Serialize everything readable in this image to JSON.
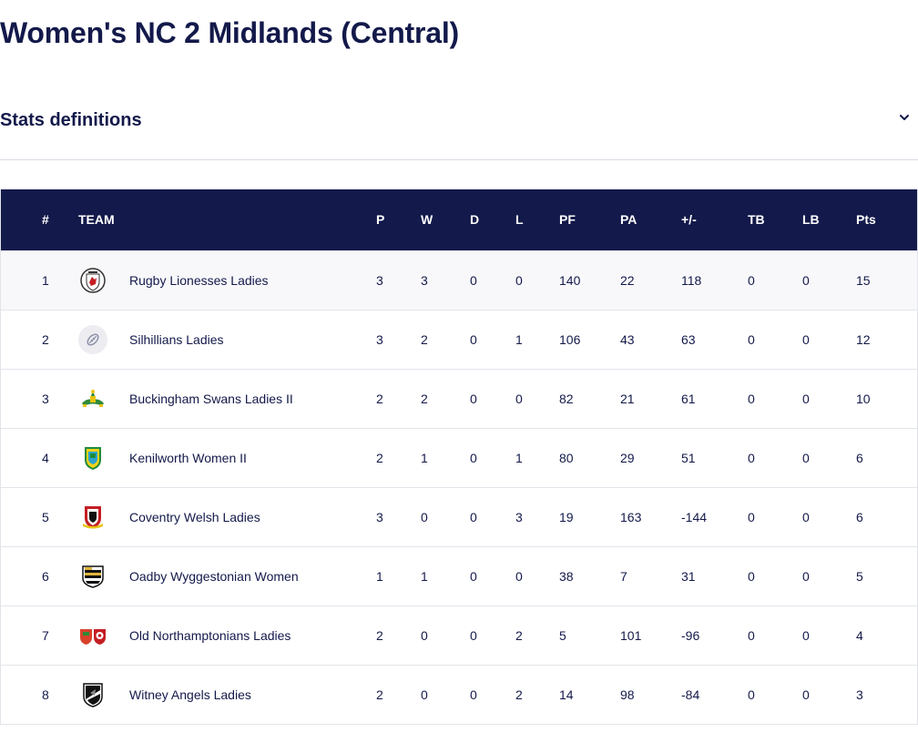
{
  "page": {
    "title": "Women's NC 2 Midlands (Central)"
  },
  "stats_definitions": {
    "label": "Stats definitions",
    "icon": "chevron-down-icon"
  },
  "colors": {
    "navy": "#13194a",
    "row_alt": "#f8f8fb",
    "border": "#e2e4ea"
  },
  "table": {
    "headers": {
      "pos": "#",
      "team": "TEAM",
      "p": "P",
      "w": "W",
      "d": "D",
      "l": "L",
      "pf": "PF",
      "pa": "PA",
      "pm": "+/-",
      "tb": "TB",
      "lb": "LB",
      "pts": "Pts"
    },
    "rows": [
      {
        "pos": "1",
        "team": "Rugby Lionesses Ladies",
        "badge": "rugby-lionesses-crest-icon",
        "p": "3",
        "w": "3",
        "d": "0",
        "l": "0",
        "pf": "140",
        "pa": "22",
        "pm": "118",
        "tb": "0",
        "lb": "0",
        "pts": "15"
      },
      {
        "pos": "2",
        "team": "Silhillians Ladies",
        "badge": "rugby-ball-placeholder-icon",
        "p": "3",
        "w": "2",
        "d": "0",
        "l": "1",
        "pf": "106",
        "pa": "43",
        "pm": "63",
        "tb": "0",
        "lb": "0",
        "pts": "12"
      },
      {
        "pos": "3",
        "team": "Buckingham Swans Ladies II",
        "badge": "buckingham-swans-crest-icon",
        "p": "2",
        "w": "2",
        "d": "0",
        "l": "0",
        "pf": "82",
        "pa": "21",
        "pm": "61",
        "tb": "0",
        "lb": "0",
        "pts": "10"
      },
      {
        "pos": "4",
        "team": "Kenilworth Women II",
        "badge": "kenilworth-crest-icon",
        "p": "2",
        "w": "1",
        "d": "0",
        "l": "1",
        "pf": "80",
        "pa": "29",
        "pm": "51",
        "tb": "0",
        "lb": "0",
        "pts": "6"
      },
      {
        "pos": "5",
        "team": "Coventry Welsh Ladies",
        "badge": "coventry-welsh-crest-icon",
        "p": "3",
        "w": "0",
        "d": "0",
        "l": "3",
        "pf": "19",
        "pa": "163",
        "pm": "-144",
        "tb": "0",
        "lb": "0",
        "pts": "6"
      },
      {
        "pos": "6",
        "team": "Oadby Wyggestonian Women",
        "badge": "oadby-wyggestonian-crest-icon",
        "p": "1",
        "w": "1",
        "d": "0",
        "l": "0",
        "pf": "38",
        "pa": "7",
        "pm": "31",
        "tb": "0",
        "lb": "0",
        "pts": "5"
      },
      {
        "pos": "7",
        "team": "Old Northamptonians Ladies",
        "badge": "old-northamptonians-crest-icon",
        "p": "2",
        "w": "0",
        "d": "0",
        "l": "2",
        "pf": "5",
        "pa": "101",
        "pm": "-96",
        "tb": "0",
        "lb": "0",
        "pts": "4"
      },
      {
        "pos": "8",
        "team": "Witney Angels Ladies",
        "badge": "witney-angels-crest-icon",
        "p": "2",
        "w": "0",
        "d": "0",
        "l": "2",
        "pf": "14",
        "pa": "98",
        "pm": "-84",
        "tb": "0",
        "lb": "0",
        "pts": "3"
      }
    ]
  }
}
